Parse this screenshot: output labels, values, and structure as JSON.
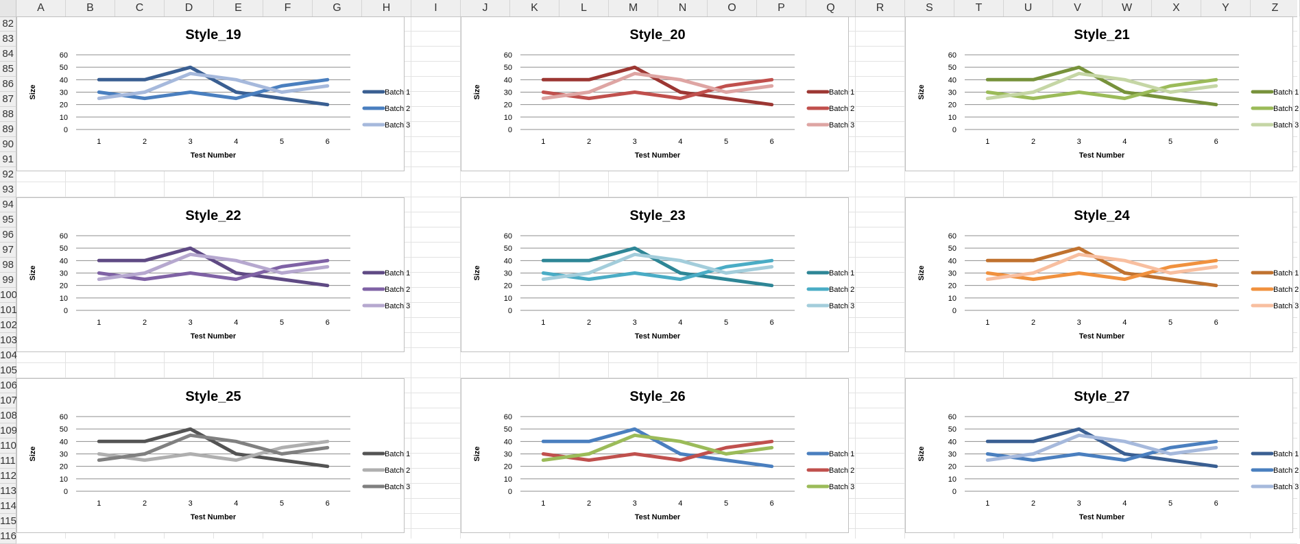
{
  "columns": [
    "A",
    "B",
    "C",
    "D",
    "E",
    "F",
    "G",
    "H",
    "I",
    "J",
    "K",
    "L",
    "M",
    "N",
    "O",
    "P",
    "Q",
    "R",
    "S",
    "T",
    "U",
    "V",
    "W",
    "X",
    "Y",
    "Z"
  ],
  "rows": [
    "82",
    "83",
    "84",
    "85",
    "86",
    "87",
    "88",
    "89",
    "90",
    "91",
    "92",
    "93",
    "94",
    "95",
    "96",
    "97",
    "98",
    "99",
    "100",
    "101",
    "102",
    "103",
    "104",
    "105",
    "106",
    "107",
    "108",
    "109",
    "110",
    "111",
    "112",
    "113",
    "114",
    "115",
    "116"
  ],
  "chart_data": [
    {
      "type": "line",
      "title": "Style_19",
      "xlabel": "Test Number",
      "ylabel": "Size",
      "categories": [
        "1",
        "2",
        "3",
        "4",
        "5",
        "6"
      ],
      "ylim": [
        0,
        60
      ],
      "yticks": [
        "0",
        "10",
        "20",
        "30",
        "40",
        "50",
        "60"
      ],
      "legend": "right",
      "series": [
        {
          "name": "Batch 1",
          "color": "#3a5f92",
          "values": [
            40,
            40,
            50,
            30,
            25,
            20
          ]
        },
        {
          "name": "Batch 2",
          "color": "#4a7fbf",
          "values": [
            30,
            25,
            30,
            25,
            35,
            40
          ]
        },
        {
          "name": "Batch 3",
          "color": "#a6b9dc",
          "values": [
            25,
            30,
            45,
            40,
            30,
            35
          ]
        }
      ]
    },
    {
      "type": "line",
      "title": "Style_20",
      "xlabel": "Test Number",
      "ylabel": "Size",
      "categories": [
        "1",
        "2",
        "3",
        "4",
        "5",
        "6"
      ],
      "ylim": [
        0,
        60
      ],
      "yticks": [
        "0",
        "10",
        "20",
        "30",
        "40",
        "50",
        "60"
      ],
      "legend": "right",
      "series": [
        {
          "name": "Batch 1",
          "color": "#9c3733",
          "values": [
            40,
            40,
            50,
            30,
            25,
            20
          ]
        },
        {
          "name": "Batch 2",
          "color": "#c0504d",
          "values": [
            30,
            25,
            30,
            25,
            35,
            40
          ]
        },
        {
          "name": "Batch 3",
          "color": "#dea5a3",
          "values": [
            25,
            30,
            45,
            40,
            30,
            35
          ]
        }
      ]
    },
    {
      "type": "line",
      "title": "Style_21",
      "xlabel": "Test Number",
      "ylabel": "Size",
      "categories": [
        "1",
        "2",
        "3",
        "4",
        "5",
        "6"
      ],
      "ylim": [
        0,
        60
      ],
      "yticks": [
        "0",
        "10",
        "20",
        "30",
        "40",
        "50",
        "60"
      ],
      "legend": "right",
      "series": [
        {
          "name": "Batch 1",
          "color": "#77923b",
          "values": [
            40,
            40,
            50,
            30,
            25,
            20
          ]
        },
        {
          "name": "Batch 2",
          "color": "#9bbb59",
          "values": [
            30,
            25,
            30,
            25,
            35,
            40
          ]
        },
        {
          "name": "Batch 3",
          "color": "#c5d6a5",
          "values": [
            25,
            30,
            45,
            40,
            30,
            35
          ]
        }
      ]
    },
    {
      "type": "line",
      "title": "Style_22",
      "xlabel": "Test Number",
      "ylabel": "Size",
      "categories": [
        "1",
        "2",
        "3",
        "4",
        "5",
        "6"
      ],
      "ylim": [
        0,
        60
      ],
      "yticks": [
        "0",
        "10",
        "20",
        "30",
        "40",
        "50",
        "60"
      ],
      "legend": "right",
      "series": [
        {
          "name": "Batch 1",
          "color": "#5f4a84",
          "values": [
            40,
            40,
            50,
            30,
            25,
            20
          ]
        },
        {
          "name": "Batch 2",
          "color": "#7f62a5",
          "values": [
            30,
            25,
            30,
            25,
            35,
            40
          ]
        },
        {
          "name": "Batch 3",
          "color": "#b6a8cf",
          "values": [
            25,
            30,
            45,
            40,
            30,
            35
          ]
        }
      ]
    },
    {
      "type": "line",
      "title": "Style_23",
      "xlabel": "Test Number",
      "ylabel": "Size",
      "categories": [
        "1",
        "2",
        "3",
        "4",
        "5",
        "6"
      ],
      "ylim": [
        0,
        60
      ],
      "yticks": [
        "0",
        "10",
        "20",
        "30",
        "40",
        "50",
        "60"
      ],
      "legend": "right",
      "series": [
        {
          "name": "Batch 1",
          "color": "#2e8696",
          "values": [
            40,
            40,
            50,
            30,
            25,
            20
          ]
        },
        {
          "name": "Batch 2",
          "color": "#4aacc5",
          "values": [
            30,
            25,
            30,
            25,
            35,
            40
          ]
        },
        {
          "name": "Batch 3",
          "color": "#a3cddb",
          "values": [
            25,
            30,
            45,
            40,
            30,
            35
          ]
        }
      ]
    },
    {
      "type": "line",
      "title": "Style_24",
      "xlabel": "Test Number",
      "ylabel": "Size",
      "categories": [
        "1",
        "2",
        "3",
        "4",
        "5",
        "6"
      ],
      "ylim": [
        0,
        60
      ],
      "yticks": [
        "0",
        "10",
        "20",
        "30",
        "40",
        "50",
        "60"
      ],
      "legend": "right",
      "series": [
        {
          "name": "Batch 1",
          "color": "#c0722f",
          "values": [
            40,
            40,
            50,
            30,
            25,
            20
          ]
        },
        {
          "name": "Batch 2",
          "color": "#f0913e",
          "values": [
            30,
            25,
            30,
            25,
            35,
            40
          ]
        },
        {
          "name": "Batch 3",
          "color": "#f8bfa0",
          "values": [
            25,
            30,
            45,
            40,
            30,
            35
          ]
        }
      ]
    },
    {
      "type": "line",
      "title": "Style_25",
      "xlabel": "Test Number",
      "ylabel": "Size",
      "categories": [
        "1",
        "2",
        "3",
        "4",
        "5",
        "6"
      ],
      "ylim": [
        0,
        60
      ],
      "yticks": [
        "0",
        "10",
        "20",
        "30",
        "40",
        "50",
        "60"
      ],
      "legend": "right",
      "series": [
        {
          "name": "Batch 1",
          "color": "#545454",
          "values": [
            40,
            40,
            50,
            30,
            25,
            20
          ]
        },
        {
          "name": "Batch 2",
          "color": "#afafaf",
          "values": [
            30,
            25,
            30,
            25,
            35,
            40
          ]
        },
        {
          "name": "Batch 3",
          "color": "#808080",
          "values": [
            25,
            30,
            45,
            40,
            30,
            35
          ]
        }
      ]
    },
    {
      "type": "line",
      "title": "Style_26",
      "xlabel": "Test Number",
      "ylabel": "Size",
      "categories": [
        "1",
        "2",
        "3",
        "4",
        "5",
        "6"
      ],
      "ylim": [
        0,
        60
      ],
      "yticks": [
        "0",
        "10",
        "20",
        "30",
        "40",
        "50",
        "60"
      ],
      "legend": "right",
      "series": [
        {
          "name": "Batch 1",
          "color": "#4a7fbf",
          "values": [
            40,
            40,
            50,
            30,
            25,
            20
          ]
        },
        {
          "name": "Batch 2",
          "color": "#c0504d",
          "values": [
            30,
            25,
            30,
            25,
            35,
            40
          ]
        },
        {
          "name": "Batch 3",
          "color": "#9bbb59",
          "values": [
            25,
            30,
            45,
            40,
            30,
            35
          ]
        }
      ]
    },
    {
      "type": "line",
      "title": "Style_27",
      "xlabel": "Test Number",
      "ylabel": "Size",
      "categories": [
        "1",
        "2",
        "3",
        "4",
        "5",
        "6"
      ],
      "ylim": [
        0,
        60
      ],
      "yticks": [
        "0",
        "10",
        "20",
        "30",
        "40",
        "50",
        "60"
      ],
      "legend": "right",
      "series": [
        {
          "name": "Batch 1",
          "color": "#3a5f92",
          "values": [
            40,
            40,
            50,
            30,
            25,
            20
          ]
        },
        {
          "name": "Batch 2",
          "color": "#4a7fbf",
          "values": [
            30,
            25,
            30,
            25,
            35,
            40
          ]
        },
        {
          "name": "Batch 3",
          "color": "#a6b9dc",
          "values": [
            25,
            30,
            45,
            40,
            30,
            35
          ]
        }
      ]
    }
  ]
}
